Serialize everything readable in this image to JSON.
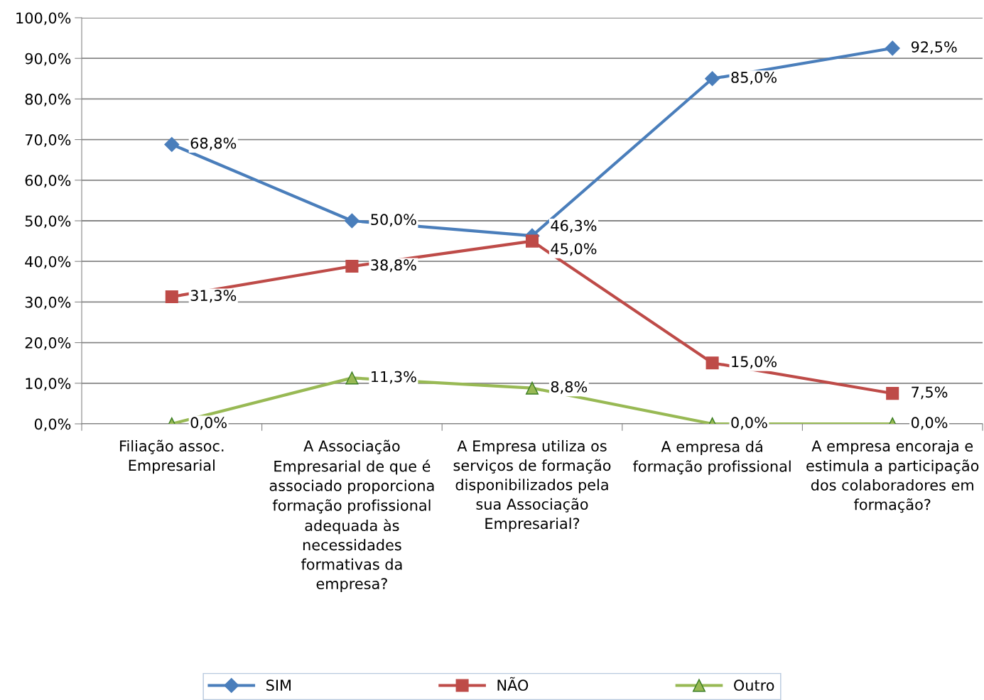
{
  "chart_data": {
    "type": "line",
    "categories": [
      "Filiação assoc. Empresarial",
      "A Associação Empresarial de que é associado proporciona formação profissional adequada às necessidades formativas da empresa?",
      "A Empresa utiliza os serviços de formação disponibilizados pela sua Associação Empresarial?",
      "A empresa dá formação profissional",
      "A empresa encoraja e estimula a participação dos colaboradores em formação?"
    ],
    "series": [
      {
        "name": "SIM",
        "color": "#4a7ebb",
        "marker": "diamond",
        "values": [
          68.8,
          50.0,
          46.3,
          85.0,
          92.5
        ],
        "value_labels": [
          "68,8%",
          "50,0%",
          "46,3%",
          "85,0%",
          "92,5%"
        ]
      },
      {
        "name": "NÃO",
        "color": "#be4b48",
        "marker": "square",
        "values": [
          31.3,
          38.8,
          45.0,
          15.0,
          7.5
        ],
        "value_labels": [
          "31,3%",
          "38,8%",
          "45,0%",
          "15,0%",
          "7,5%"
        ]
      },
      {
        "name": "Outro",
        "color": "#98b954",
        "marker": "triangle",
        "values": [
          0,
          11.3,
          8.8,
          0,
          0
        ],
        "value_labels": [
          "0,0%",
          "11,3%",
          "8,8%",
          "0,0%",
          "0,0%"
        ]
      }
    ],
    "ylim": [
      0,
      100
    ],
    "yticks": [
      {
        "value": 0,
        "label": "0,0%"
      },
      {
        "value": 10,
        "label": "10,0%"
      },
      {
        "value": 20,
        "label": "20,0%"
      },
      {
        "value": 30,
        "label": "30,0%"
      },
      {
        "value": 40,
        "label": "40,0%"
      },
      {
        "value": 50,
        "label": "50,0%"
      },
      {
        "value": 60,
        "label": "60,0%"
      },
      {
        "value": 70,
        "label": "70,0%"
      },
      {
        "value": 80,
        "label": "80,0%"
      },
      {
        "value": 90,
        "label": "90,0%"
      },
      {
        "value": 100,
        "label": "100,0%"
      }
    ],
    "grid": "y",
    "legend": "bottom",
    "line_style": "solid"
  }
}
